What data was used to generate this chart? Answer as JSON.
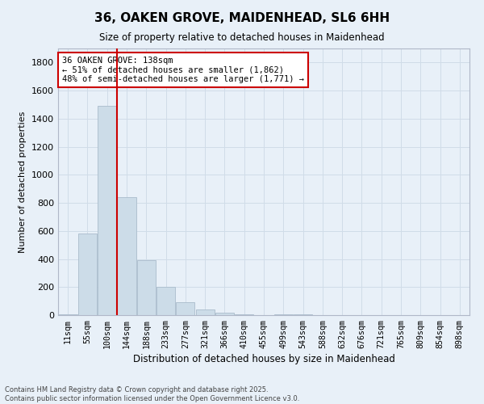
{
  "title": "36, OAKEN GROVE, MAIDENHEAD, SL6 6HH",
  "subtitle": "Size of property relative to detached houses in Maidenhead",
  "xlabel": "Distribution of detached houses by size in Maidenhead",
  "ylabel": "Number of detached properties",
  "categories": [
    "11sqm",
    "55sqm",
    "100sqm",
    "144sqm",
    "188sqm",
    "233sqm",
    "277sqm",
    "321sqm",
    "366sqm",
    "410sqm",
    "455sqm",
    "499sqm",
    "543sqm",
    "588sqm",
    "632sqm",
    "676sqm",
    "721sqm",
    "765sqm",
    "809sqm",
    "854sqm",
    "898sqm"
  ],
  "values": [
    5,
    580,
    1490,
    840,
    390,
    200,
    95,
    40,
    20,
    8,
    0,
    5,
    3,
    0,
    0,
    0,
    0,
    0,
    0,
    0,
    0
  ],
  "bar_color": "#ccdce8",
  "bar_edge_color": "#aabccc",
  "vline_color": "#cc0000",
  "vline_pos": 2.5,
  "annotation_text": "36 OAKEN GROVE: 138sqm\n← 51% of detached houses are smaller (1,862)\n48% of semi-detached houses are larger (1,771) →",
  "annotation_box_facecolor": "#ffffff",
  "annotation_box_edgecolor": "#cc0000",
  "ylim": [
    0,
    1900
  ],
  "yticks": [
    0,
    200,
    400,
    600,
    800,
    1000,
    1200,
    1400,
    1600,
    1800
  ],
  "grid_color": "#d0dce8",
  "background_color": "#e8f0f8",
  "footer_line1": "Contains HM Land Registry data © Crown copyright and database right 2025.",
  "footer_line2": "Contains public sector information licensed under the Open Government Licence v3.0."
}
